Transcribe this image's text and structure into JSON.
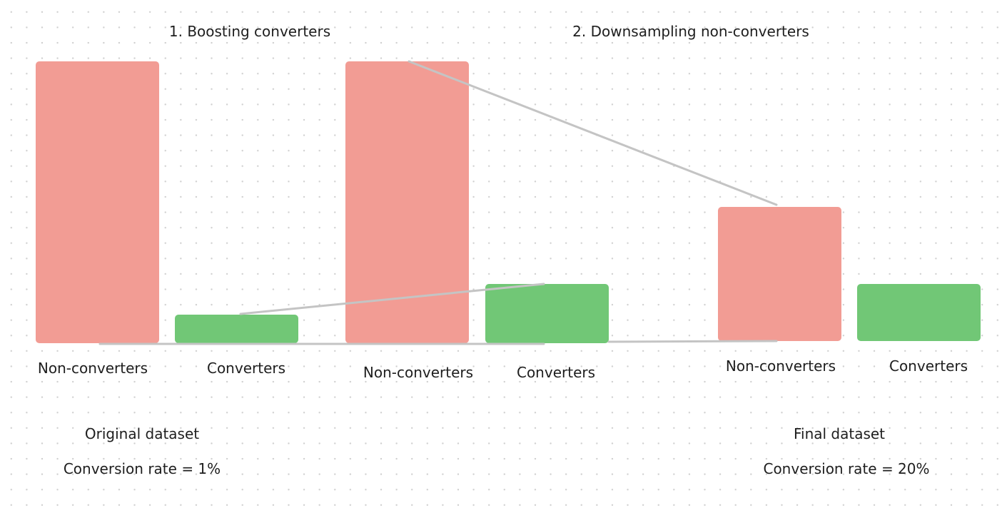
{
  "steps": {
    "step1_title": "1. Boosting converters",
    "step2_title": "2. Downsampling non-converters"
  },
  "original": {
    "non_converters_label": "Non-converters",
    "converters_label": "Converters",
    "caption": "Original dataset",
    "conversion_rate": "Conversion rate = 1%"
  },
  "boosted": {
    "non_converters_label": "Non-converters",
    "converters_label": "Converters"
  },
  "final": {
    "non_converters_label": "Non-converters",
    "converters_label": "Converters",
    "caption": "Final dataset",
    "conversion_rate": "Conversion rate = 20%"
  },
  "colors": {
    "non_converters": "#f29c94",
    "converters": "#71c776",
    "connector": "#c4c4c4"
  }
}
